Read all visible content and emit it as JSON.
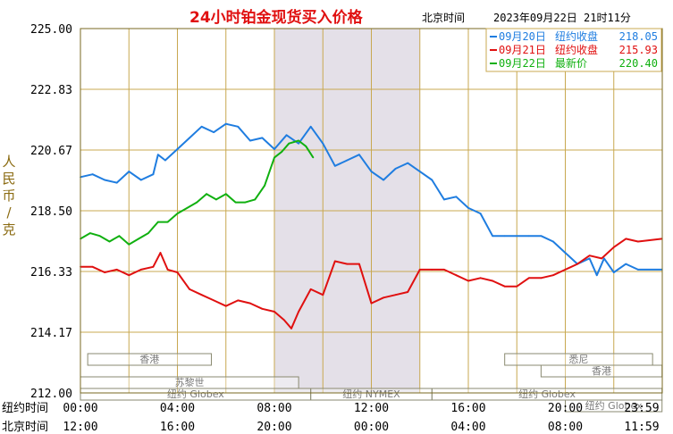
{
  "chart_data": {
    "type": "line",
    "title": "24小时铂金现货买入价格",
    "timezone_label": "北京时间",
    "timestamp": "2023年09月22日 21时11分",
    "ylabel_chars": [
      "人",
      "民",
      "币",
      "/",
      "克"
    ],
    "ylim": [
      212.0,
      225.0
    ],
    "yticks": [
      "225.00",
      "222.83",
      "220.67",
      "218.50",
      "216.33",
      "214.17",
      "212.00"
    ],
    "xlim": [
      0,
      24
    ],
    "row_labels": [
      "纽约时间",
      "北京时间"
    ],
    "xticks_ny": [
      "00:00",
      "04:00",
      "08:00",
      "12:00",
      "16:00",
      "20:00",
      "23:59"
    ],
    "xticks_bj": [
      "12:00",
      "16:00",
      "20:00",
      "00:00",
      "04:00",
      "08:00",
      "11:59"
    ],
    "shaded_region": [
      8.0,
      14.0
    ],
    "grid": true,
    "legend_position": "top-right",
    "legend": [
      {
        "label": "09月20日",
        "desc": "纽约收盘",
        "value": "218.05",
        "color": "#1f7de0"
      },
      {
        "label": "09月21日",
        "desc": "纽约收盘",
        "value": "215.93",
        "color": "#e01010"
      },
      {
        "label": "09月22日",
        "desc": "最新价",
        "value": "220.40",
        "color": "#10b010"
      }
    ],
    "markets": [
      {
        "name": "香港",
        "start": 0.3,
        "end": 5.4,
        "row": 0
      },
      {
        "name": "悉尼",
        "start": 17.5,
        "end": 23.6,
        "row": 0
      },
      {
        "name": "香港",
        "start": 19.0,
        "end": 23.99,
        "row": 1
      },
      {
        "name": "苏黎世",
        "start": 0.0,
        "end": 9.0,
        "row": 2
      },
      {
        "name": "纽约 Globex",
        "start": 0.0,
        "end": 9.5,
        "row": 3
      },
      {
        "name": "纽约 NYMEX",
        "start": 9.5,
        "end": 14.5,
        "row": 3
      },
      {
        "name": "纽约 Globex",
        "start": 14.5,
        "end": 23.99,
        "row": 3
      },
      {
        "name": "纽约 Globex",
        "start": 20.0,
        "end": 23.99,
        "row": 4
      }
    ],
    "series": [
      {
        "name": "09月20日",
        "color": "#1f7de0",
        "x": [
          0,
          0.5,
          1,
          1.5,
          2,
          2.5,
          3,
          3.2,
          3.5,
          4,
          4.5,
          5,
          5.5,
          6,
          6.5,
          7,
          7.5,
          8,
          8.5,
          9,
          9.5,
          10,
          10.5,
          11,
          11.5,
          12,
          12.5,
          13,
          13.5,
          14,
          14.5,
          15,
          15.5,
          16,
          16.5,
          17,
          17.5,
          18,
          18.5,
          19,
          19.5,
          20,
          20.5,
          21,
          21.3,
          21.6,
          22,
          22.5,
          23,
          23.99
        ],
        "y": [
          219.7,
          219.8,
          219.6,
          219.5,
          219.9,
          219.6,
          219.8,
          220.5,
          220.3,
          220.7,
          221.1,
          221.5,
          221.3,
          221.6,
          221.5,
          221.0,
          221.1,
          220.7,
          221.2,
          220.9,
          221.5,
          220.9,
          220.1,
          220.3,
          220.5,
          219.9,
          219.6,
          220.0,
          220.2,
          219.9,
          219.6,
          218.9,
          219.0,
          218.6,
          218.4,
          217.6,
          217.6,
          217.6,
          217.6,
          217.6,
          217.4,
          217.0,
          216.6,
          216.8,
          216.2,
          216.8,
          216.3,
          216.6,
          216.4,
          216.4
        ]
      },
      {
        "name": "09月21日",
        "color": "#e01010",
        "x": [
          0,
          0.5,
          1,
          1.5,
          2,
          2.5,
          3,
          3.3,
          3.6,
          4,
          4.5,
          5,
          5.5,
          6,
          6.5,
          7,
          7.5,
          8,
          8.4,
          8.7,
          9,
          9.5,
          10,
          10.5,
          11,
          11.5,
          12,
          12.5,
          13,
          13.5,
          14,
          14.5,
          15,
          15.5,
          16,
          16.5,
          17,
          17.5,
          18,
          18.5,
          19,
          19.5,
          20,
          20.5,
          21,
          21.5,
          22,
          22.5,
          23,
          23.99
        ],
        "y": [
          216.5,
          216.5,
          216.3,
          216.4,
          216.2,
          216.4,
          216.5,
          217.0,
          216.4,
          216.3,
          215.7,
          215.5,
          215.3,
          215.1,
          215.3,
          215.2,
          215.0,
          214.9,
          214.6,
          214.3,
          214.9,
          215.7,
          215.5,
          216.7,
          216.6,
          216.6,
          215.2,
          215.4,
          215.5,
          215.6,
          216.4,
          216.4,
          216.4,
          216.2,
          216.0,
          216.1,
          216.0,
          215.8,
          215.8,
          216.1,
          216.1,
          216.2,
          216.4,
          216.6,
          216.9,
          216.8,
          217.2,
          217.5,
          217.4,
          217.5
        ]
      },
      {
        "name": "09月22日",
        "color": "#10b010",
        "x": [
          0,
          0.4,
          0.8,
          1.2,
          1.6,
          2,
          2.4,
          2.8,
          3.2,
          3.6,
          4,
          4.4,
          4.8,
          5.2,
          5.6,
          6,
          6.4,
          6.8,
          7.2,
          7.6,
          8,
          8.3,
          8.6,
          9,
          9.3,
          9.6
        ],
        "y": [
          217.5,
          217.7,
          217.6,
          217.4,
          217.6,
          217.3,
          217.5,
          217.7,
          218.1,
          218.1,
          218.4,
          218.6,
          218.8,
          219.1,
          218.9,
          219.1,
          218.8,
          218.8,
          218.9,
          219.4,
          220.4,
          220.6,
          220.9,
          221.0,
          220.8,
          220.4
        ]
      }
    ]
  }
}
